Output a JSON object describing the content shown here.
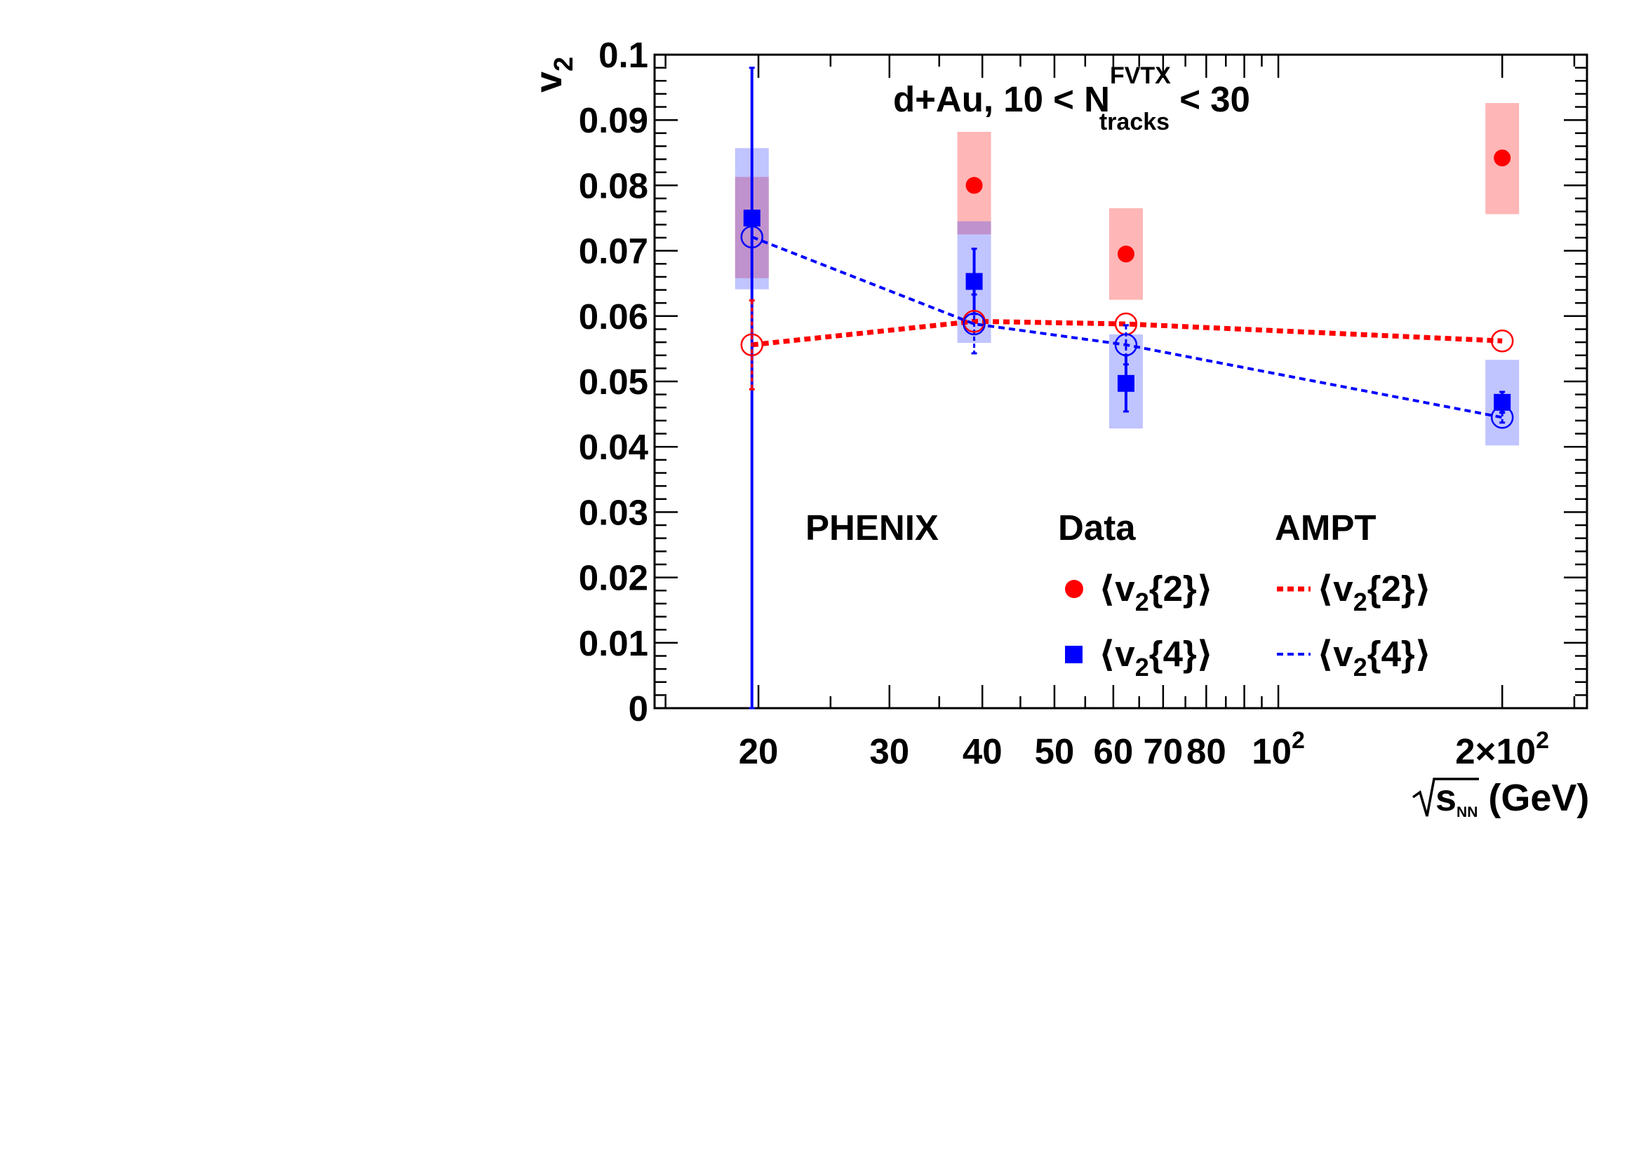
{
  "chart_data": {
    "type": "scatter",
    "title": "d+Au, 10 < N",
    "title_sup": "FVTX",
    "title_sub": "tracks",
    "title_end": " < 30",
    "xlabel_sub": "NN",
    "xlabel_unit": " (GeV)",
    "ylabel": "v",
    "ylabel_sub": "2",
    "x_scale": "log",
    "xlim": [
      14.5,
      260
    ],
    "ylim": [
      0,
      0.1
    ],
    "y_ticks": [
      "0",
      "0.01",
      "0.02",
      "0.03",
      "0.04",
      "0.05",
      "0.06",
      "0.07",
      "0.08",
      "0.09",
      "0.1"
    ],
    "x_ticks": [
      {
        "x": 20,
        "label": "20"
      },
      {
        "x": 30,
        "label": "30"
      },
      {
        "x": 40,
        "label": "40"
      },
      {
        "x": 50,
        "label": "50"
      },
      {
        "x": 60,
        "label": "60"
      },
      {
        "x": 70,
        "label": "70"
      },
      {
        "x": 80,
        "label": "80"
      },
      {
        "x": 100,
        "label": "10",
        "sup": "2"
      },
      {
        "x": 200,
        "label": "2×10",
        "sup": "2"
      }
    ],
    "grid": false,
    "experiment_label": "PHENIX",
    "legend": {
      "placement": "bottom-right",
      "data_header": "Data",
      "model_header": "AMPT",
      "v22_label": "⟨v",
      "v22_sub": "2",
      "v22_end": "{2}⟩",
      "v24_label": "⟨v",
      "v24_sub": "2",
      "v24_end": "{4}⟩"
    },
    "series": [
      {
        "role": "data-v22",
        "color": "#ff0000",
        "marker": "filled-circle",
        "points": [
          {
            "x": 39,
            "y": 0.08,
            "stat": 0.0004,
            "syslo": 0.0725,
            "syshi": 0.0882
          },
          {
            "x": 62.4,
            "y": 0.0695,
            "stat": 0.0006,
            "syslo": 0.0625,
            "syshi": 0.0765
          },
          {
            "x": 200,
            "y": 0.0842,
            "stat": 0.0004,
            "syslo": 0.0756,
            "syshi": 0.0926
          }
        ]
      },
      {
        "role": "data-v22-19.6",
        "color": "#ff0000",
        "marker": "none",
        "points": [
          {
            "x": 19.6,
            "y": 0.0735,
            "stat": 0.0,
            "syslo": 0.0658,
            "syshi": 0.0813
          }
        ]
      },
      {
        "role": "data-v24",
        "color": "#0000ff",
        "marker": "filled-square",
        "points": [
          {
            "x": 19.6,
            "y": 0.075,
            "stat_lo": 0.075,
            "stat_hi": 0.023,
            "syslo": 0.0641,
            "syshi": 0.0857
          },
          {
            "x": 39,
            "y": 0.0653,
            "stat": 0.005,
            "syslo": 0.0559,
            "syshi": 0.0745
          },
          {
            "x": 62.4,
            "y": 0.0497,
            "stat": 0.0043,
            "syslo": 0.0428,
            "syshi": 0.0572
          },
          {
            "x": 200,
            "y": 0.0468,
            "stat": 0.0016,
            "syslo": 0.0402,
            "syshi": 0.0533
          }
        ]
      },
      {
        "role": "ampt-v22",
        "color": "#ff0000",
        "line": "dashed-thick",
        "marker": "open-circle",
        "points": [
          {
            "x": 19.6,
            "y": 0.0556,
            "err": 0.0068
          },
          {
            "x": 39,
            "y": 0.0592,
            "err": 0.0
          },
          {
            "x": 62.4,
            "y": 0.0588,
            "err": 0.0
          },
          {
            "x": 200,
            "y": 0.0562,
            "err": 0.0
          }
        ]
      },
      {
        "role": "ampt-v24",
        "color": "#0000ff",
        "line": "dashed",
        "marker": "open-circle",
        "points": [
          {
            "x": 19.6,
            "y": 0.0721,
            "err": 0.0
          },
          {
            "x": 39,
            "y": 0.0588,
            "err": 0.0045
          },
          {
            "x": 62.4,
            "y": 0.0556,
            "err": 0.003
          },
          {
            "x": 200,
            "y": 0.0445,
            "err": 0.0008
          }
        ]
      }
    ]
  }
}
